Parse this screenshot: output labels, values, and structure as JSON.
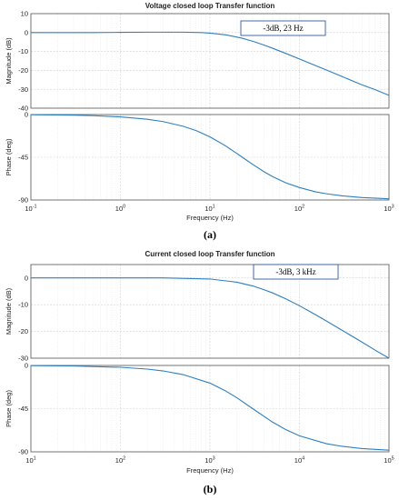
{
  "chart_data": [
    {
      "panel_label": "(a)",
      "title": "Voltage closed loop Transfer function",
      "type": "line",
      "xscale": "log",
      "xlabel": "Frequency  (Hz)",
      "xlim": [
        0.1,
        1000
      ],
      "xticks": [
        {
          "value": 0.1,
          "base": "10",
          "exp": "-1"
        },
        {
          "value": 1,
          "base": "10",
          "exp": "0"
        },
        {
          "value": 10,
          "base": "10",
          "exp": "1"
        },
        {
          "value": 100,
          "base": "10",
          "exp": "2"
        },
        {
          "value": 1000,
          "base": "10",
          "exp": "3"
        }
      ],
      "grid": true,
      "color": "#2e7fbf",
      "magnitude": {
        "ylabel": "Magnitude (dB)",
        "ylim": [
          -40,
          10
        ],
        "yticks": [
          "10",
          "0",
          "-10",
          "-20",
          "-30",
          "-40"
        ],
        "x": [
          0.1,
          0.2,
          0.5,
          1,
          2,
          5,
          8,
          10,
          15,
          20,
          23,
          30,
          40,
          50,
          70,
          100,
          150,
          200,
          300,
          500,
          700,
          1000
        ],
        "y": [
          0,
          0,
          0,
          0.1,
          0.2,
          0.2,
          0,
          -0.3,
          -1.2,
          -2.4,
          -3.0,
          -4.6,
          -6.6,
          -8.3,
          -11.0,
          -14.0,
          -17.4,
          -19.8,
          -23.3,
          -27.7,
          -30.2,
          -33.2
        ]
      },
      "phase": {
        "ylabel": "Phase (deg)",
        "ylim": [
          -90,
          0
        ],
        "yticks": [
          "0",
          "-45",
          "-90"
        ],
        "x": [
          0.1,
          0.3,
          0.5,
          1,
          2,
          3,
          5,
          7,
          10,
          15,
          20,
          23,
          30,
          40,
          50,
          70,
          100,
          150,
          200,
          300,
          500,
          1000
        ],
        "y": [
          -0.2,
          -0.7,
          -1.2,
          -2.5,
          -5,
          -7.4,
          -12.3,
          -16.9,
          -23.5,
          -33.1,
          -41.0,
          -45.0,
          -52.5,
          -60.1,
          -65.3,
          -71.8,
          -76.9,
          -81.3,
          -83.4,
          -85.6,
          -87.4,
          -88.7
        ]
      },
      "annotation": "-3dB, 23 Hz"
    },
    {
      "panel_label": "(b)",
      "title": "Current closed loop Transfer function",
      "type": "line",
      "xscale": "log",
      "xlabel": "Frequency  (Hz)",
      "xlim": [
        10,
        100000
      ],
      "xticks": [
        {
          "value": 10,
          "base": "10",
          "exp": "1"
        },
        {
          "value": 100,
          "base": "10",
          "exp": "2"
        },
        {
          "value": 1000,
          "base": "10",
          "exp": "3"
        },
        {
          "value": 10000,
          "base": "10",
          "exp": "4"
        },
        {
          "value": 100000,
          "base": "10",
          "exp": "5"
        }
      ],
      "grid": true,
      "color": "#2e7fbf",
      "magnitude": {
        "ylabel": "Magnitude (dB)",
        "ylim": [
          -30,
          5
        ],
        "yticks": [
          "0",
          "-10",
          "-20",
          "-30"
        ],
        "x": [
          10,
          30,
          100,
          300,
          1000,
          2000,
          3000,
          4000,
          5000,
          7000,
          10000,
          15000,
          20000,
          30000,
          50000,
          70000,
          100000
        ],
        "y": [
          0,
          0,
          0,
          0,
          -0.4,
          -1.6,
          -3.0,
          -4.4,
          -5.6,
          -7.8,
          -10.4,
          -13.7,
          -16.1,
          -19.6,
          -24.0,
          -27.0,
          -30.0
        ]
      },
      "phase": {
        "ylabel": "Phase (deg)",
        "ylim": [
          -90,
          0
        ],
        "yticks": [
          "0",
          "-45",
          "-90"
        ],
        "x": [
          10,
          30,
          100,
          200,
          300,
          500,
          1000,
          1500,
          2000,
          3000,
          5000,
          7000,
          10000,
          20000,
          30000,
          50000,
          100000
        ],
        "y": [
          -0.2,
          -0.6,
          -1.9,
          -3.8,
          -5.7,
          -9.5,
          -18.4,
          -26.6,
          -33.7,
          -45.0,
          -59.0,
          -66.8,
          -73.3,
          -81.5,
          -84.3,
          -86.6,
          -88.3
        ]
      },
      "annotation": "-3dB, 3 kHz"
    }
  ]
}
